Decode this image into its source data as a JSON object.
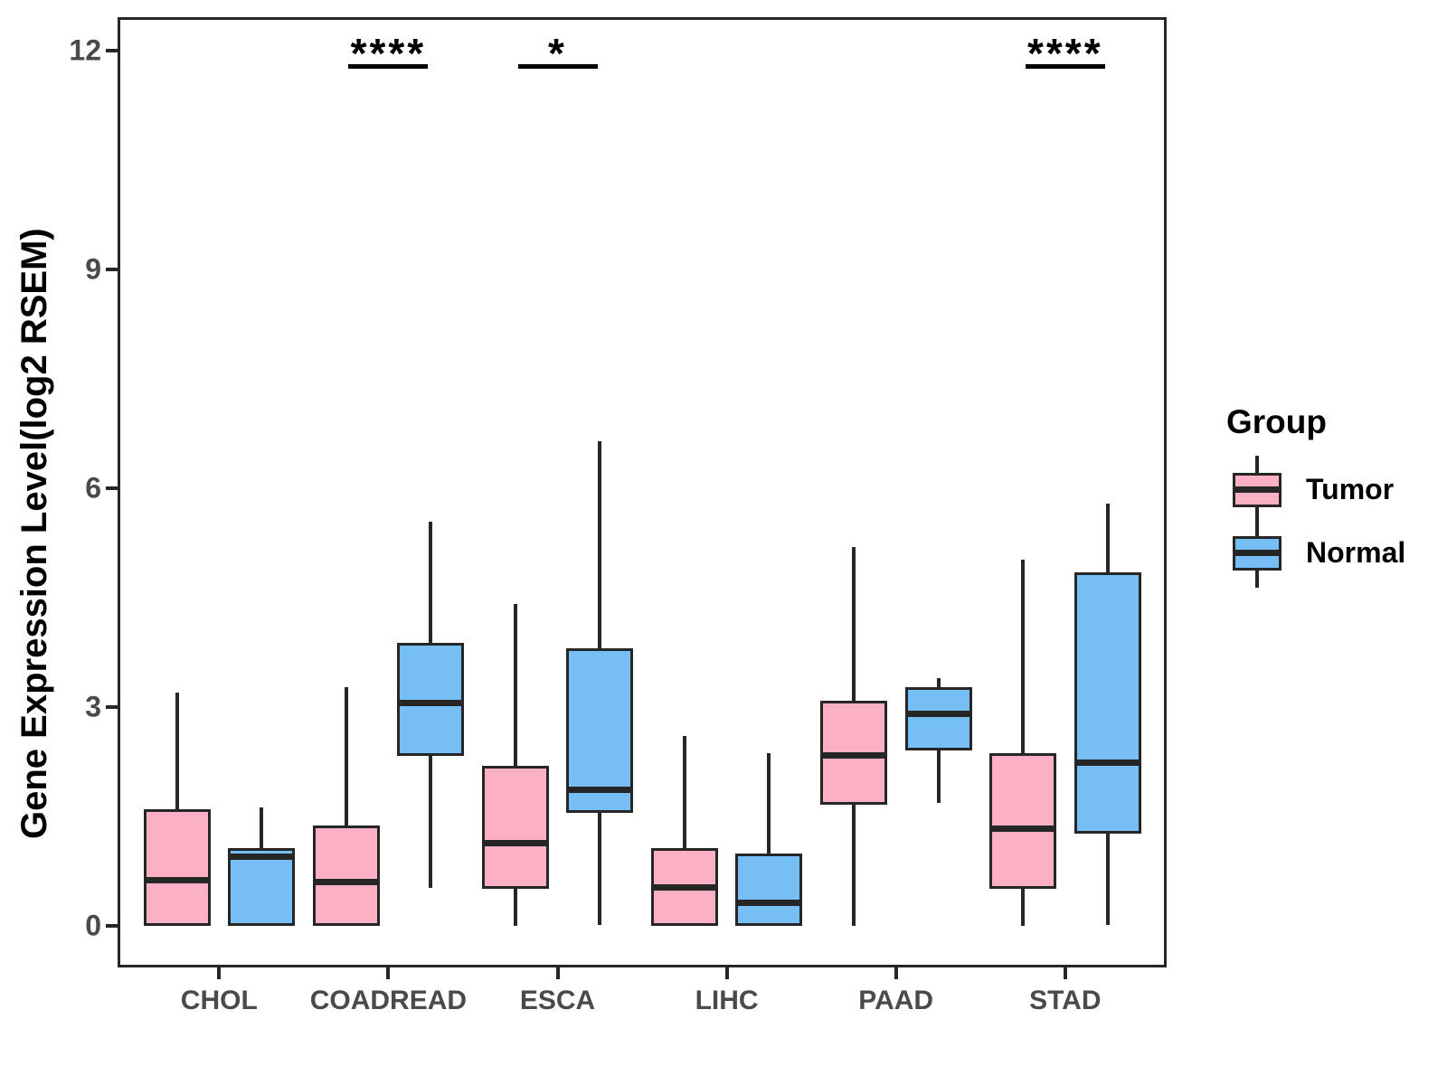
{
  "chart_data": {
    "type": "boxplot",
    "title": "",
    "ylabel": "Gene Expression Level(log2 RSEM)",
    "xlabel": "",
    "categories": [
      "CHOL",
      "COADREAD",
      "ESCA",
      "LIHC",
      "PAAD",
      "STAD"
    ],
    "yticks": [
      {
        "label": "0",
        "value": 0
      },
      {
        "label": "3",
        "value": 3
      },
      {
        "label": "6",
        "value": 6
      },
      {
        "label": "9",
        "value": 9
      },
      {
        "label": "12",
        "value": 12
      }
    ],
    "ylim": [
      -0.57,
      12.46
    ],
    "grid": false,
    "legend_position": "right",
    "legend": {
      "title": "Group",
      "entries": [
        {
          "label": "Tumor",
          "color": "#FBB1C3"
        },
        {
          "label": "Normal",
          "color": "#76BFF5"
        }
      ]
    },
    "series": [
      {
        "name": "Tumor",
        "color": "#FBB1C3",
        "boxes": [
          {
            "category": "CHOL",
            "low": 0,
            "q1": 0,
            "median": 0.63,
            "q3": 1.6,
            "high": 3.2
          },
          {
            "category": "COADREAD",
            "low": 0,
            "q1": 0,
            "median": 0.6,
            "q3": 1.37,
            "high": 3.27
          },
          {
            "category": "ESCA",
            "low": 0,
            "q1": 0.51,
            "median": 1.13,
            "q3": 2.19,
            "high": 4.41
          },
          {
            "category": "LIHC",
            "low": 0,
            "q1": 0,
            "median": 0.53,
            "q3": 1.07,
            "high": 2.6
          },
          {
            "category": "PAAD",
            "low": 0,
            "q1": 1.66,
            "median": 2.34,
            "q3": 3.09,
            "high": 5.19
          },
          {
            "category": "STAD",
            "low": 0,
            "q1": 0.51,
            "median": 1.33,
            "q3": 2.37,
            "high": 5.02
          }
        ]
      },
      {
        "name": "Normal",
        "color": "#76BFF5",
        "boxes": [
          {
            "category": "CHOL",
            "low": 0,
            "q1": 0,
            "median": 0.95,
            "q3": 1.07,
            "high": 1.62
          },
          {
            "category": "COADREAD",
            "low": 0.52,
            "q1": 2.33,
            "median": 3.06,
            "q3": 3.88,
            "high": 5.54
          },
          {
            "category": "ESCA",
            "low": 0.01,
            "q1": 1.55,
            "median": 1.86,
            "q3": 3.81,
            "high": 6.64
          },
          {
            "category": "LIHC",
            "low": 0,
            "q1": 0,
            "median": 0.31,
            "q3": 0.99,
            "high": 2.37
          },
          {
            "category": "PAAD",
            "low": 1.69,
            "q1": 2.4,
            "median": 2.91,
            "q3": 3.27,
            "high": 3.4
          },
          {
            "category": "STAD",
            "low": 0.01,
            "q1": 1.26,
            "median": 2.24,
            "q3": 4.85,
            "high": 5.79
          }
        ]
      }
    ],
    "annotations": [
      {
        "category": "COADREAD",
        "label": "****"
      },
      {
        "category": "ESCA",
        "label": "*"
      },
      {
        "category": "STAD",
        "label": "****"
      }
    ],
    "style": {
      "box_border": "#262626",
      "axis_text": "#4a4a4a",
      "annotation_color": "#000000",
      "background": "#ffffff"
    }
  }
}
